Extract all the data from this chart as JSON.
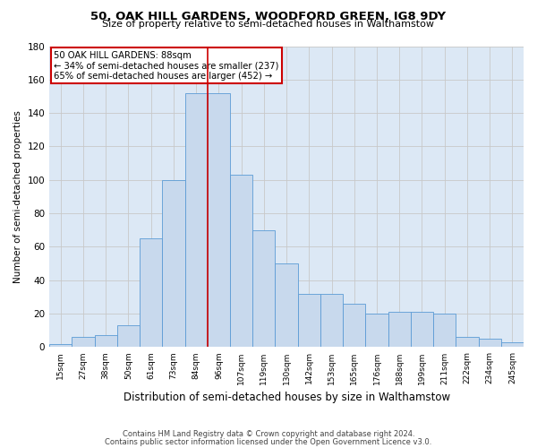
{
  "title": "50, OAK HILL GARDENS, WOODFORD GREEN, IG8 9DY",
  "subtitle": "Size of property relative to semi-detached houses in Walthamstow",
  "xlabel": "Distribution of semi-detached houses by size in Walthamstow",
  "ylabel": "Number of semi-detached properties",
  "footnote1": "Contains HM Land Registry data © Crown copyright and database right 2024.",
  "footnote2": "Contains public sector information licensed under the Open Government Licence v3.0.",
  "bar_labels": [
    "15sqm",
    "27sqm",
    "38sqm",
    "50sqm",
    "61sqm",
    "73sqm",
    "84sqm",
    "96sqm",
    "107sqm",
    "119sqm",
    "130sqm",
    "142sqm",
    "153sqm",
    "165sqm",
    "176sqm",
    "188sqm",
    "199sqm",
    "211sqm",
    "222sqm",
    "234sqm",
    "245sqm"
  ],
  "bar_values": [
    2,
    6,
    7,
    13,
    65,
    100,
    152,
    152,
    103,
    70,
    50,
    32,
    32,
    26,
    20,
    21,
    21,
    20,
    6,
    5,
    3
  ],
  "bar_color": "#c8d9ed",
  "bar_edge_color": "#5b9bd5",
  "grid_color": "#c8c8c8",
  "annotation_box_color": "#cc0000",
  "annotation_text_line1": "50 OAK HILL GARDENS: 88sqm",
  "annotation_text_line2": "← 34% of semi-detached houses are smaller (237)",
  "annotation_text_line3": "65% of semi-detached houses are larger (452) →",
  "marker_line_color": "#cc0000",
  "marker_index": 6,
  "ylim": [
    0,
    180
  ],
  "yticks": [
    0,
    20,
    40,
    60,
    80,
    100,
    120,
    140,
    160,
    180
  ],
  "background_color": "#ffffff",
  "plot_bg_color": "#dce8f5"
}
